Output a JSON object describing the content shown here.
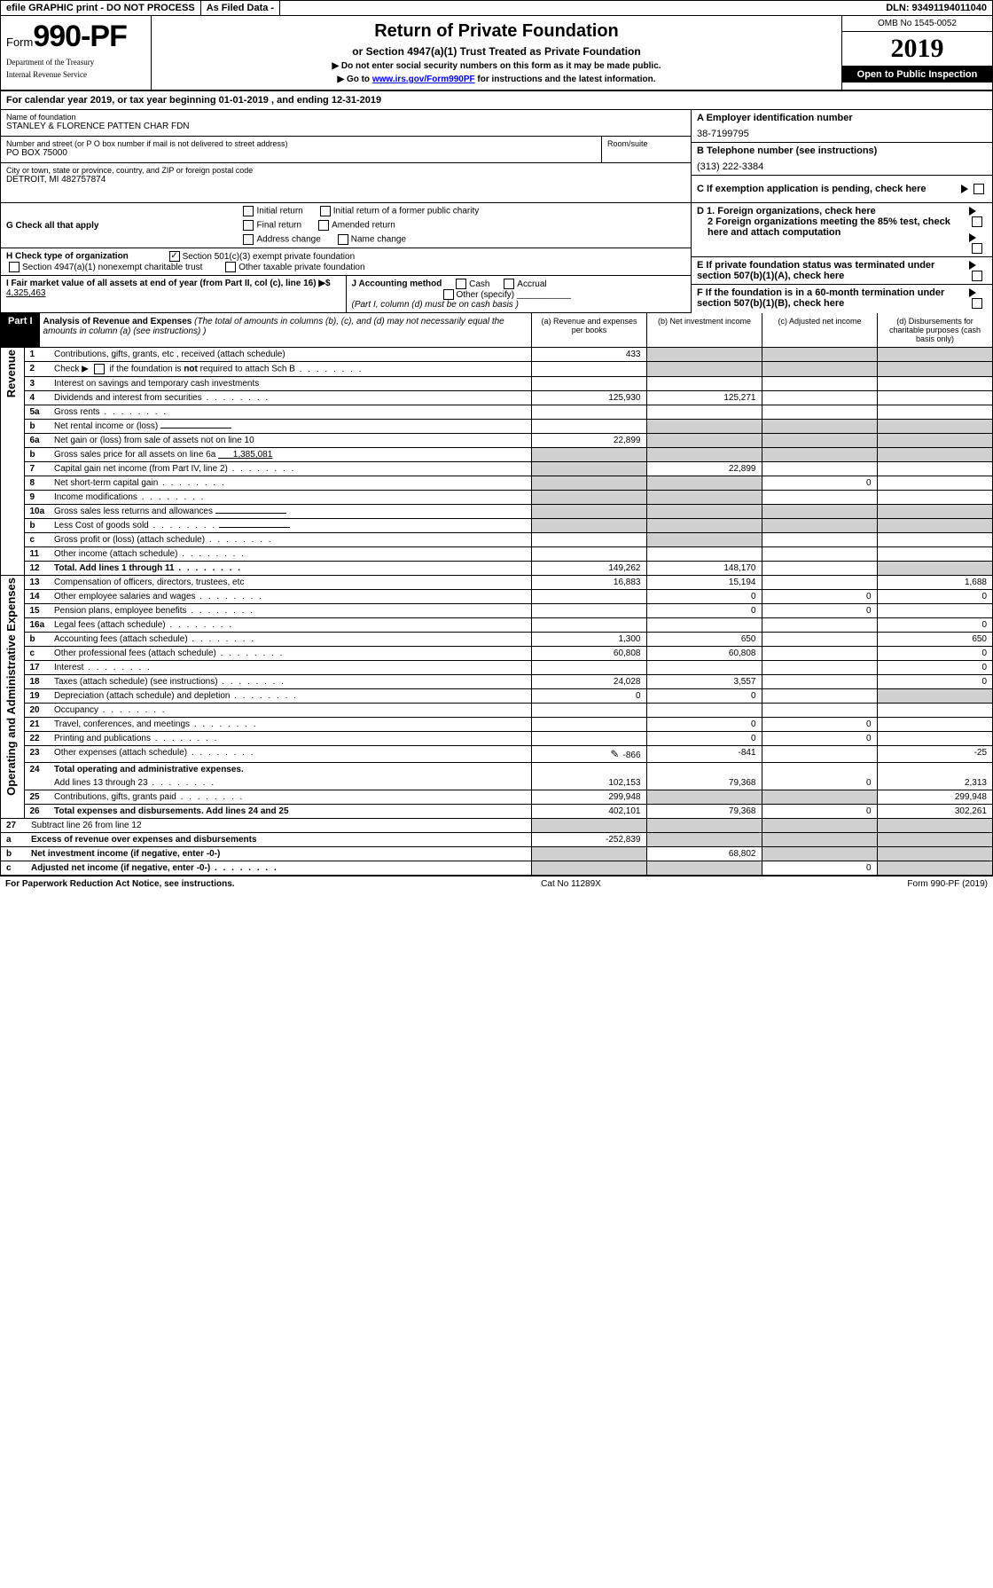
{
  "top": {
    "efile": "efile GRAPHIC print - DO NOT PROCESS",
    "filed": "As Filed Data -",
    "dln": "DLN: 93491194011040"
  },
  "header": {
    "form_prefix": "Form",
    "form_num": "990-PF",
    "dept": "Department of the Treasury",
    "irs": "Internal Revenue Service",
    "title": "Return of Private Foundation",
    "subtitle": "or Section 4947(a)(1) Trust Treated as Private Foundation",
    "instr1": "▶ Do not enter social security numbers on this form as it may be made public.",
    "instr2_pre": "▶ Go to ",
    "instr2_link": "www.irs.gov/Form990PF",
    "instr2_post": " for instructions and the latest information.",
    "omb": "OMB No 1545-0052",
    "year": "2019",
    "pub": "Open to Public Inspection"
  },
  "cal_year": {
    "label": "For calendar year 2019, or tax year beginning ",
    "begin": "01-01-2019",
    "mid": " , and ending ",
    "end": "12-31-2019"
  },
  "name": {
    "lbl": "Name of foundation",
    "val": "STANLEY & FLORENCE PATTEN CHAR FDN"
  },
  "address": {
    "lbl": "Number and street (or P O  box number if mail is not delivered to street address)",
    "room_lbl": "Room/suite",
    "val": "PO BOX 75000"
  },
  "city": {
    "lbl": "City or town, state or province, country, and ZIP or foreign postal code",
    "val": "DETROIT, MI  482757874"
  },
  "right": {
    "A_lbl": "A Employer identification number",
    "A_val": "38-7199795",
    "B_lbl": "B Telephone number (see instructions)",
    "B_val": "(313) 222-3384",
    "C_lbl": "C If exemption application is pending, check here",
    "D1": "D 1. Foreign organizations, check here",
    "D2": "2 Foreign organizations meeting the 85% test, check here and attach computation",
    "E": "E  If private foundation status was terminated under section 507(b)(1)(A), check here",
    "F": "F  If the foundation is in a 60-month termination under section 507(b)(1)(B), check here"
  },
  "G": {
    "lbl": "G Check all that apply",
    "opts": [
      "Initial return",
      "Initial return of a former public charity",
      "Final return",
      "Amended return",
      "Address change",
      "Name change"
    ]
  },
  "H": {
    "lbl": "H Check type of organization",
    "opt1": "Section 501(c)(3) exempt private foundation",
    "opt2": "Section 4947(a)(1) nonexempt charitable trust",
    "opt3": "Other taxable private foundation"
  },
  "I": {
    "lbl": "I Fair market value of all assets at end of year (from Part II, col  (c), line 16) ▶$",
    "val": "4,325,463"
  },
  "J": {
    "lbl": "J Accounting method",
    "cash": "Cash",
    "accrual": "Accrual",
    "other": "Other (specify)",
    "note": "(Part I, column (d) must be on cash basis )"
  },
  "part1": {
    "hdr": "Part I",
    "title": "Analysis of Revenue and Expenses",
    "sub": " (The total of amounts in columns (b), (c), and (d) may not necessarily equal the amounts in column (a) (see instructions) )",
    "cols": {
      "a": "(a) Revenue and expenses per books",
      "b": "(b) Net investment income",
      "c": "(c) Adjusted net income",
      "d": "(d) Disbursements for charitable purposes (cash basis only)"
    }
  },
  "sections": {
    "revenue": "Revenue",
    "expenses": "Operating and Administrative Expenses"
  },
  "rows": [
    {
      "n": "1",
      "d": "Contributions, gifts, grants, etc , received (attach schedule)",
      "a": "433",
      "shade_bcd": true
    },
    {
      "n": "2",
      "d": "Check ▶ ☐ if the foundation is not required to attach Sch  B",
      "dots": true,
      "shade_bcd": true
    },
    {
      "n": "3",
      "d": "Interest on savings and temporary cash investments"
    },
    {
      "n": "4",
      "d": "Dividends and interest from securities",
      "dots": true,
      "a": "125,930",
      "b": "125,271"
    },
    {
      "n": "5a",
      "d": "Gross rents",
      "dots": true
    },
    {
      "n": "b",
      "d": "Net rental income or (loss)",
      "shade_bcd": true,
      "blank": true
    },
    {
      "n": "6a",
      "d": "Net gain or (loss) from sale of assets not on line 10",
      "a": "22,899",
      "shade_bcd": true
    },
    {
      "n": "b",
      "d": "Gross sales price for all assets on line 6a",
      "after": "1,385,081",
      "shade_a": true,
      "shade_bcd": true
    },
    {
      "n": "7",
      "d": "Capital gain net income (from Part IV, line 2)",
      "dots": true,
      "b": "22,899",
      "shade_a": true
    },
    {
      "n": "8",
      "d": "Net short-term capital gain",
      "dots": true,
      "c": "0",
      "shade_a": true,
      "shade_b": true
    },
    {
      "n": "9",
      "d": "Income modifications",
      "dots": true,
      "shade_a": true,
      "shade_b": true
    },
    {
      "n": "10a",
      "d": "Gross sales less returns and allowances",
      "shade_a": true,
      "shade_bcd": true,
      "blank": true
    },
    {
      "n": "b",
      "d": "Less  Cost of goods sold",
      "dots": true,
      "shade_a": true,
      "shade_bcd": true,
      "blank": true
    },
    {
      "n": "c",
      "d": "Gross profit or (loss) (attach schedule)",
      "dots": true,
      "shade_b": true
    },
    {
      "n": "11",
      "d": "Other income (attach schedule)",
      "dots": true
    },
    {
      "n": "12",
      "d": "Total. Add lines 1 through 11",
      "dots": true,
      "bold": true,
      "a": "149,262",
      "b": "148,170",
      "shade_d": true
    }
  ],
  "exp_rows": [
    {
      "n": "13",
      "d": "Compensation of officers, directors, trustees, etc",
      "a": "16,883",
      "b": "15,194",
      "dd": "1,688"
    },
    {
      "n": "14",
      "d": "Other employee salaries and wages",
      "dots": true,
      "a": "",
      "b": "0",
      "c": "0",
      "dd": "0"
    },
    {
      "n": "15",
      "d": "Pension plans, employee benefits",
      "dots": true,
      "a": "",
      "b": "0",
      "c": "0"
    },
    {
      "n": "16a",
      "d": "Legal fees (attach schedule)",
      "dots": true,
      "dd": "0"
    },
    {
      "n": "b",
      "d": "Accounting fees (attach schedule)",
      "dots": true,
      "a": "1,300",
      "b": "650",
      "dd": "650"
    },
    {
      "n": "c",
      "d": "Other professional fees (attach schedule)",
      "dots": true,
      "a": "60,808",
      "b": "60,808",
      "dd": "0"
    },
    {
      "n": "17",
      "d": "Interest",
      "dots": true,
      "dd": "0"
    },
    {
      "n": "18",
      "d": "Taxes (attach schedule) (see instructions)",
      "dots": true,
      "a": "24,028",
      "b": "3,557",
      "dd": "0"
    },
    {
      "n": "19",
      "d": "Depreciation (attach schedule) and depletion",
      "dots": true,
      "a": "0",
      "b": "0",
      "shade_d": true
    },
    {
      "n": "20",
      "d": "Occupancy",
      "dots": true
    },
    {
      "n": "21",
      "d": "Travel, conferences, and meetings",
      "dots": true,
      "b": "0",
      "c": "0"
    },
    {
      "n": "22",
      "d": "Printing and publications",
      "dots": true,
      "b": "0",
      "c": "0"
    },
    {
      "n": "23",
      "d": "Other expenses (attach schedule)",
      "dots": true,
      "a": "-866",
      "b": "-841",
      "dd": "-25",
      "pencil": true
    },
    {
      "n": "24",
      "d": "Total operating and administrative expenses.",
      "bold": true,
      "nb": true
    },
    {
      "n": "",
      "d": "Add lines 13 through 23",
      "dots": true,
      "a": "102,153",
      "b": "79,368",
      "c": "0",
      "dd": "2,313"
    },
    {
      "n": "25",
      "d": "Contributions, gifts, grants paid",
      "dots": true,
      "a": "299,948",
      "dd": "299,948",
      "shade_bc": true
    },
    {
      "n": "26",
      "d": "Total expenses and disbursements. Add lines 24 and 25",
      "bold": true,
      "a": "402,101",
      "b": "79,368",
      "c": "0",
      "dd": "302,261"
    }
  ],
  "net_rows": [
    {
      "n": "27",
      "d": "Subtract line 26 from line 12",
      "shade_all": true
    },
    {
      "n": "a",
      "d": "Excess of revenue over expenses and disbursements",
      "bold": true,
      "a": "-252,839",
      "shade_bcd": true
    },
    {
      "n": "b",
      "d": "Net investment income (if negative, enter -0-)",
      "bold": true,
      "b": "68,802",
      "shade_a": true,
      "shade_cd": true
    },
    {
      "n": "c",
      "d": "Adjusted net income (if negative, enter -0-)",
      "bold": true,
      "dots": true,
      "c": "0",
      "shade_ab": true,
      "shade_d": true
    }
  ],
  "footer": {
    "left": "For Paperwork Reduction Act Notice, see instructions.",
    "mid": "Cat  No  11289X",
    "right": "Form 990-PF (2019)"
  }
}
